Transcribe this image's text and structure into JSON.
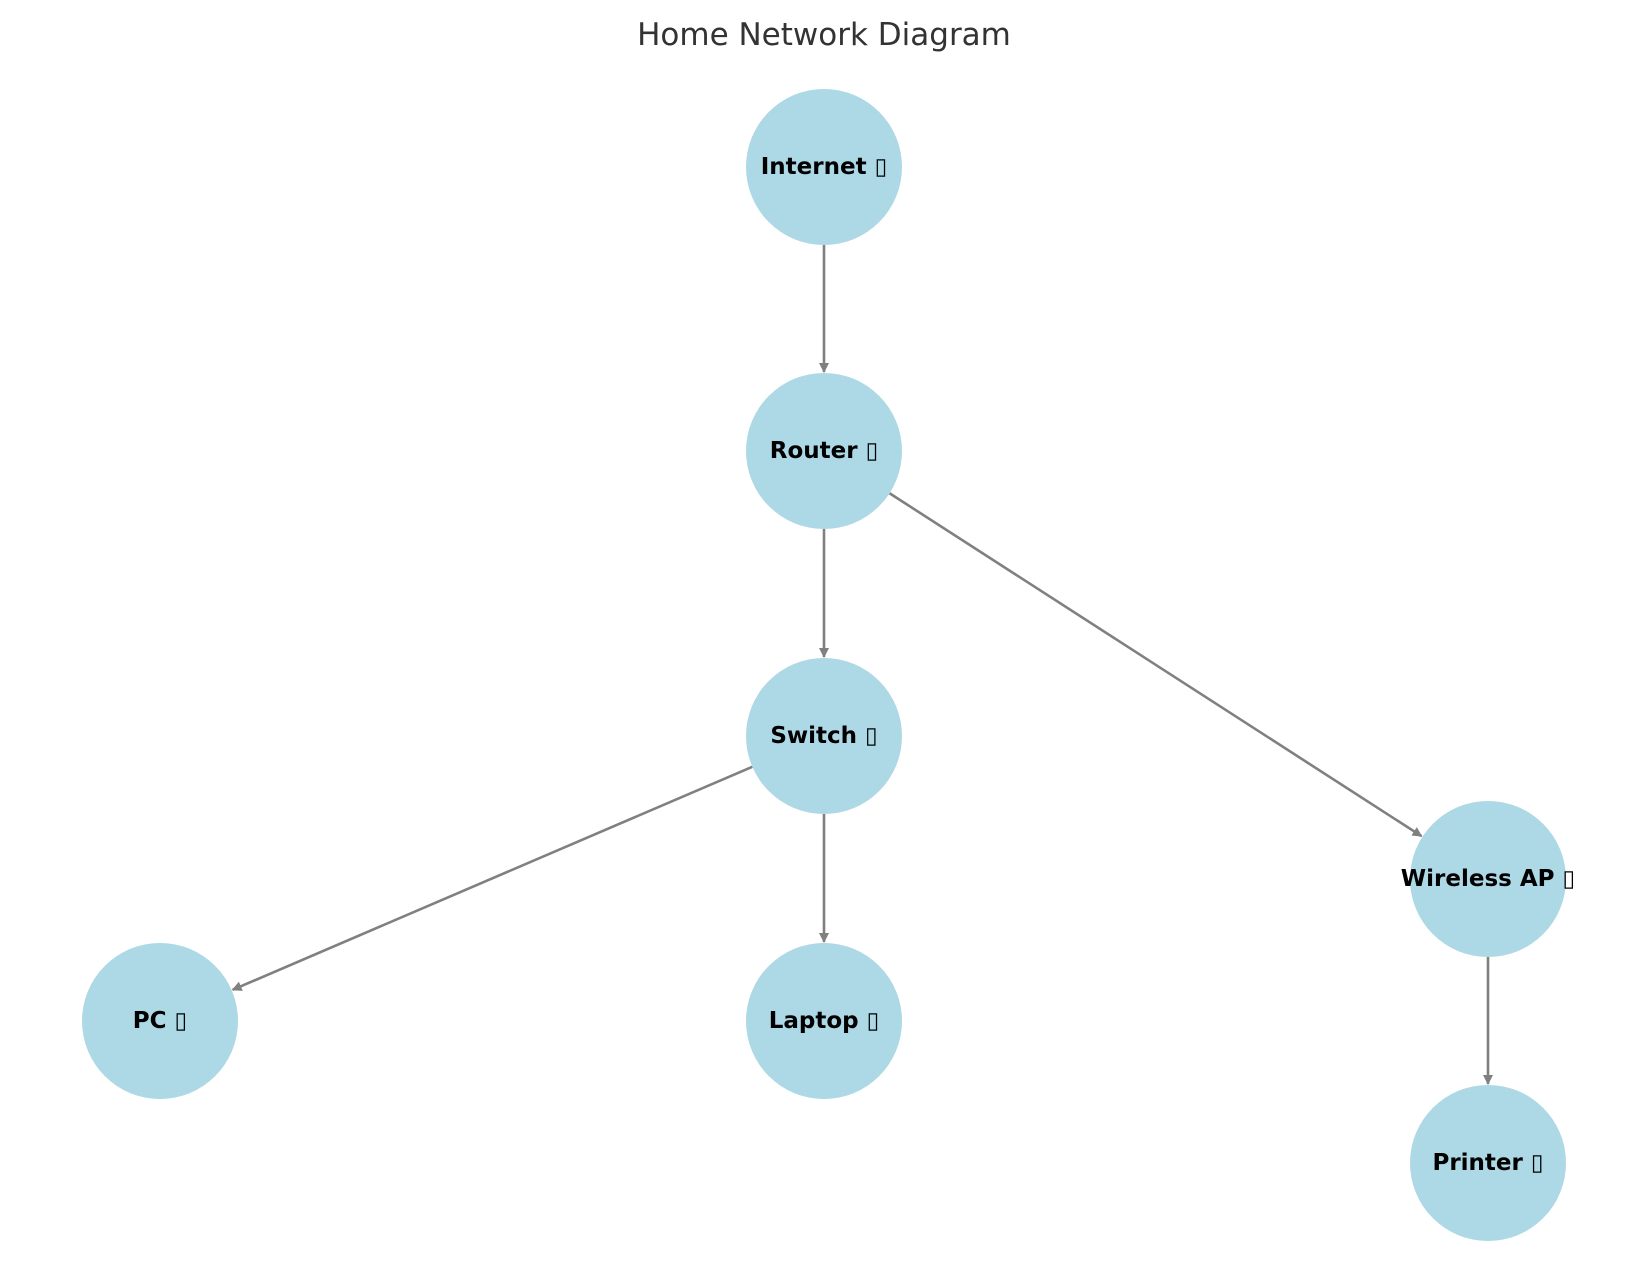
{
  "title": "Home Network Diagram",
  "colors": {
    "node_fill": "#add8e6",
    "edge": "#808080",
    "title": "#333333",
    "label": "#000000"
  },
  "nodes": [
    {
      "id": "internet",
      "label": "Internet ▯"
    },
    {
      "id": "router",
      "label": "Router ▯"
    },
    {
      "id": "switch",
      "label": "Switch ▯"
    },
    {
      "id": "wireless_ap",
      "label": "Wireless AP ▯"
    },
    {
      "id": "pc",
      "label": "PC ▯"
    },
    {
      "id": "laptop",
      "label": "Laptop ▯"
    },
    {
      "id": "printer",
      "label": "Printer ▯"
    }
  ],
  "edges": [
    {
      "from": "internet",
      "to": "router"
    },
    {
      "from": "router",
      "to": "switch"
    },
    {
      "from": "router",
      "to": "wireless_ap"
    },
    {
      "from": "switch",
      "to": "pc"
    },
    {
      "from": "switch",
      "to": "laptop"
    },
    {
      "from": "wireless_ap",
      "to": "printer"
    }
  ]
}
